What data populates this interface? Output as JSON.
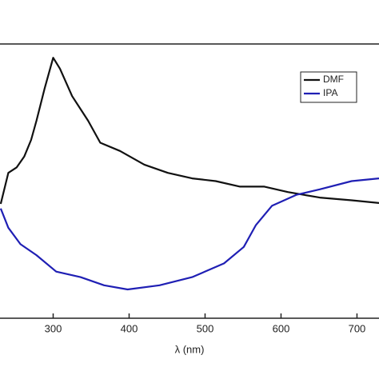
{
  "chart_data": {
    "type": "line",
    "x_label": "λ (nm)",
    "xlim": [
      230,
      729
    ],
    "xticks": [
      300,
      400,
      500,
      600,
      700
    ],
    "ylim": [
      0,
      100
    ],
    "legend": "top-right",
    "series": [
      {
        "name": "DMF",
        "color": "#111111",
        "x": [
          231,
          241,
          252,
          262,
          271,
          278,
          289,
          300,
          309,
          325,
          346,
          362,
          388,
          420,
          451,
          483,
          514,
          546,
          578,
          609,
          651,
          693,
          729
        ],
        "values": [
          41.7,
          53,
          55,
          59,
          65,
          72,
          84,
          95,
          91,
          81,
          72,
          64,
          61,
          56,
          53,
          51,
          50,
          48,
          48,
          46,
          44,
          43,
          42
        ]
      },
      {
        "name": "IPA",
        "color": "#1f1fb4",
        "x": [
          231,
          241,
          257,
          278,
          304,
          336,
          367,
          398,
          440,
          483,
          525,
          551,
          567,
          588,
          620,
          651,
          693,
          729
        ],
        "values": [
          40,
          33,
          27,
          23,
          17,
          15,
          12,
          10.5,
          12,
          15,
          20,
          26,
          34,
          41,
          45,
          47,
          50,
          51
        ]
      }
    ]
  }
}
